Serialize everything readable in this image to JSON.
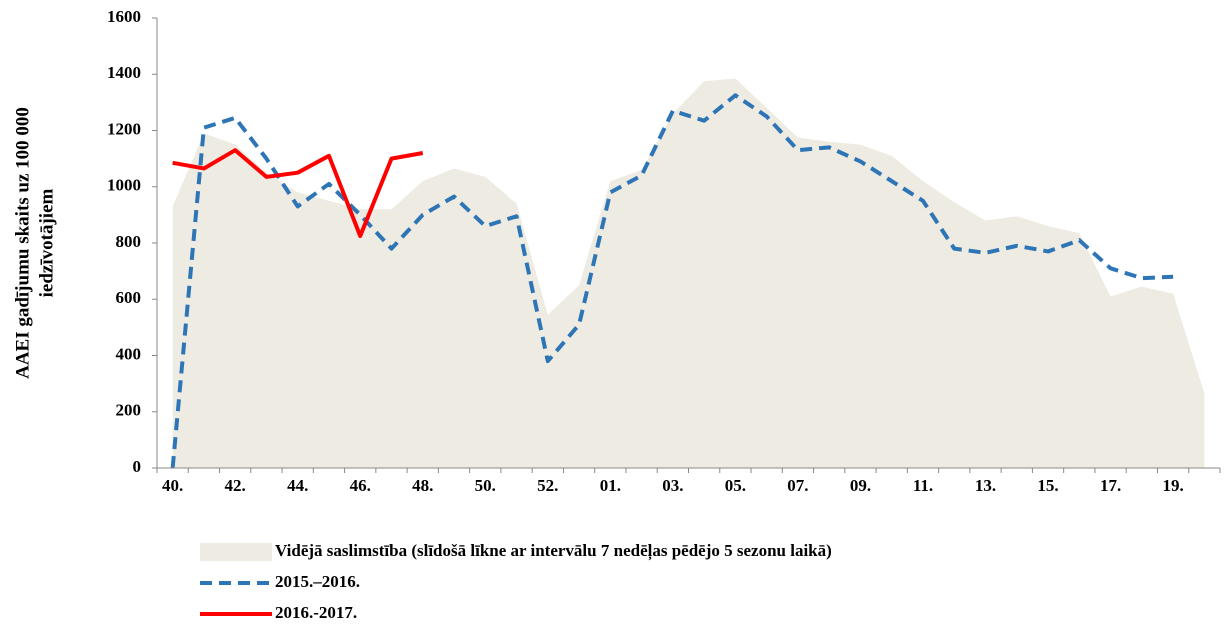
{
  "chart_data": {
    "type": "line",
    "ylabel": [
      "AAEI gadījumu skaits uz 100 000",
      "iedzīvotājiem"
    ],
    "categories": [
      "40.",
      null,
      "42.",
      null,
      "44.",
      null,
      "46.",
      null,
      "48.",
      null,
      "50.",
      null,
      "52.",
      null,
      "01.",
      null,
      "03.",
      null,
      "05.",
      null,
      "07.",
      null,
      "09.",
      null,
      "11.",
      null,
      "13.",
      null,
      "15.",
      null,
      "17.",
      null,
      "19.",
      null
    ],
    "series": [
      {
        "name": "Vidējā saslimstība (slīdošā līkne ar intervālu 7 nedēļas pēdējo 5 sezonu laikā)",
        "color": "#eeebe3",
        "style": "area",
        "values": [
          930,
          1190,
          1150,
          1050,
          980,
          950,
          920,
          920,
          1020,
          1065,
          1035,
          940,
          545,
          650,
          1020,
          1060,
          1260,
          1375,
          1385,
          1280,
          1175,
          1160,
          1150,
          1110,
          1020,
          945,
          880,
          895,
          860,
          835,
          610,
          645,
          620,
          265
        ]
      },
      {
        "name": "2015.–2016.",
        "color": "#2e75b6",
        "style": "dashed",
        "values": [
          0,
          1210,
          1245,
          1100,
          930,
          1010,
          900,
          780,
          900,
          965,
          860,
          895,
          380,
          510,
          980,
          1040,
          1270,
          1235,
          1325,
          1250,
          1130,
          1140,
          1090,
          1020,
          950,
          780,
          765,
          790,
          770,
          810,
          710,
          675,
          680,
          null
        ]
      },
      {
        "name": "2016.-2017.",
        "color": "#ff0000",
        "style": "solid",
        "values": [
          1085,
          1065,
          1130,
          1035,
          1050,
          1110,
          825,
          1100,
          1120,
          null,
          null,
          null,
          null,
          null,
          null,
          null,
          null,
          null,
          null,
          null,
          null,
          null,
          null,
          null,
          null,
          null,
          null,
          null,
          null,
          null,
          null,
          null,
          null,
          null
        ]
      }
    ],
    "ylim": [
      0,
      1600
    ],
    "yticks": [
      0,
      200,
      400,
      600,
      800,
      1000,
      1200,
      1400,
      1600
    ],
    "grid": false,
    "legend": "bottom"
  }
}
